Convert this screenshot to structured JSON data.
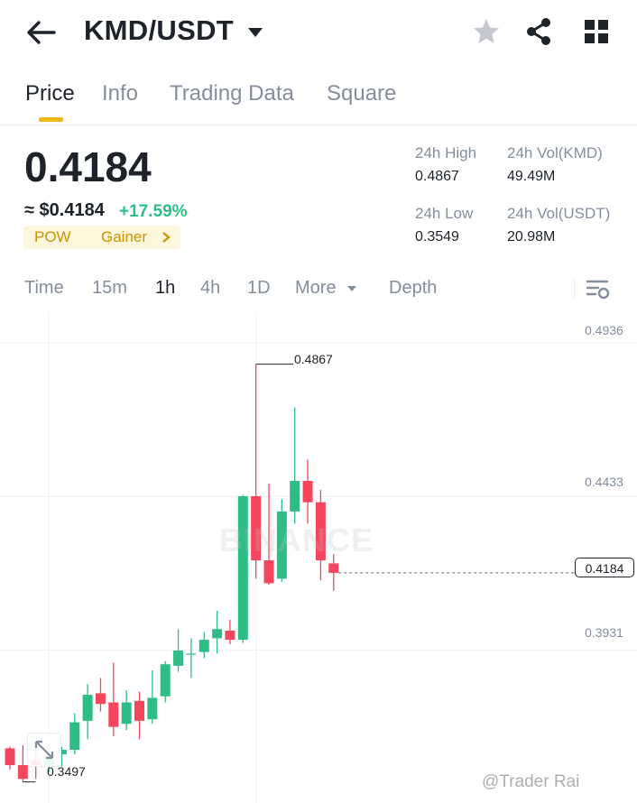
{
  "header": {
    "title": "KMD/USDT",
    "icons": [
      "back-arrow-icon",
      "caret-down-icon",
      "star-icon",
      "share-icon",
      "grid-icon"
    ]
  },
  "tabs": [
    {
      "label": "Price",
      "active": true
    },
    {
      "label": "Info"
    },
    {
      "label": "Trading Data"
    },
    {
      "label": "Square"
    }
  ],
  "price": {
    "last": "0.4184",
    "approx_usd": "≈ $0.4184",
    "change": "+17.59%",
    "tags": [
      "POW",
      "Gainer"
    ]
  },
  "stats": {
    "high_label": "24h High",
    "high_value": "0.4867",
    "low_label": "24h Low",
    "low_value": "0.3549",
    "vol_base_label": "24h Vol(KMD)",
    "vol_base_value": "49.49M",
    "vol_quote_label": "24h Vol(USDT)",
    "vol_quote_value": "20.98M"
  },
  "intervals": [
    {
      "label": "Time"
    },
    {
      "label": "15m"
    },
    {
      "label": "1h",
      "active": true
    },
    {
      "label": "4h"
    },
    {
      "label": "1D"
    },
    {
      "label": "More"
    },
    {
      "label": "Depth"
    }
  ],
  "chart": {
    "axis_labels": [
      "0.4936",
      "0.4433",
      "0.3931"
    ],
    "high_marker": "0.4867",
    "low_marker": "0.3497",
    "current_price": "0.4184",
    "watermark": "BINANCE",
    "handle": "@Trader Rai"
  },
  "colors": {
    "up": "#2ebd85",
    "down": "#f6465d",
    "accent": "#f0b90b",
    "text": "#1e2329",
    "muted": "#848e9c"
  },
  "chart_data": {
    "type": "candlestick",
    "ylim": [
      0.3431,
      0.5037
    ],
    "y_ticks": [
      0.4936,
      0.4433,
      0.3931
    ],
    "candles": [
      {
        "o": 0.361,
        "h": 0.3615,
        "l": 0.354,
        "c": 0.3555
      },
      {
        "o": 0.3555,
        "h": 0.362,
        "l": 0.35,
        "c": 0.351
      },
      {
        "o": 0.357,
        "h": 0.361,
        "l": 0.351,
        "c": 0.3555
      },
      {
        "o": 0.3555,
        "h": 0.362,
        "l": 0.353,
        "c": 0.3585
      },
      {
        "o": 0.359,
        "h": 0.3615,
        "l": 0.355,
        "c": 0.3605
      },
      {
        "o": 0.3605,
        "h": 0.3725,
        "l": 0.359,
        "c": 0.3695
      },
      {
        "o": 0.37,
        "h": 0.382,
        "l": 0.364,
        "c": 0.3785
      },
      {
        "o": 0.379,
        "h": 0.384,
        "l": 0.373,
        "c": 0.3755
      },
      {
        "o": 0.376,
        "h": 0.389,
        "l": 0.365,
        "c": 0.368
      },
      {
        "o": 0.369,
        "h": 0.38,
        "l": 0.367,
        "c": 0.376
      },
      {
        "o": 0.3765,
        "h": 0.3795,
        "l": 0.364,
        "c": 0.37
      },
      {
        "o": 0.3705,
        "h": 0.3865,
        "l": 0.369,
        "c": 0.3775
      },
      {
        "o": 0.378,
        "h": 0.3895,
        "l": 0.376,
        "c": 0.3885
      },
      {
        "o": 0.388,
        "h": 0.4,
        "l": 0.386,
        "c": 0.393
      },
      {
        "o": 0.392,
        "h": 0.397,
        "l": 0.384,
        "c": 0.392
      },
      {
        "o": 0.3925,
        "h": 0.399,
        "l": 0.3905,
        "c": 0.3965
      },
      {
        "o": 0.397,
        "h": 0.406,
        "l": 0.392,
        "c": 0.4
      },
      {
        "o": 0.3995,
        "h": 0.403,
        "l": 0.395,
        "c": 0.3965
      },
      {
        "o": 0.3965,
        "h": 0.444,
        "l": 0.3955,
        "c": 0.4435
      },
      {
        "o": 0.4435,
        "h": 0.4867,
        "l": 0.4165,
        "c": 0.4225
      },
      {
        "o": 0.4225,
        "h": 0.4475,
        "l": 0.4145,
        "c": 0.415
      },
      {
        "o": 0.4165,
        "h": 0.4425,
        "l": 0.4155,
        "c": 0.4385
      },
      {
        "o": 0.4385,
        "h": 0.4725,
        "l": 0.4345,
        "c": 0.4485
      },
      {
        "o": 0.4485,
        "h": 0.4555,
        "l": 0.4345,
        "c": 0.4415
      },
      {
        "o": 0.4415,
        "h": 0.4455,
        "l": 0.416,
        "c": 0.4225
      },
      {
        "o": 0.4215,
        "h": 0.4245,
        "l": 0.4125,
        "c": 0.4184
      }
    ]
  }
}
